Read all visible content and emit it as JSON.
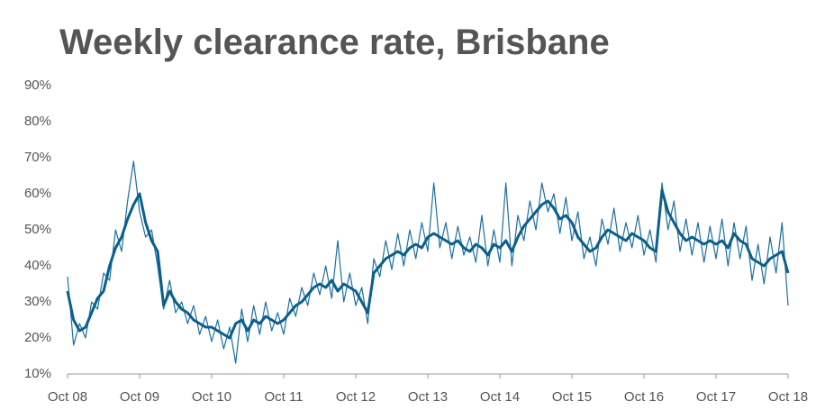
{
  "chart_data": {
    "type": "line",
    "title": "Weekly clearance rate, Brisbane",
    "categories": [
      "Oct 08",
      null,
      null,
      null,
      null,
      null,
      null,
      null,
      null,
      null,
      null,
      null,
      "Oct 09",
      null,
      null,
      null,
      null,
      null,
      null,
      null,
      null,
      null,
      null,
      null,
      "Oct 10",
      null,
      null,
      null,
      null,
      null,
      null,
      null,
      null,
      null,
      null,
      null,
      "Oct 11",
      null,
      null,
      null,
      null,
      null,
      null,
      null,
      null,
      null,
      null,
      null,
      "Oct 12",
      null,
      null,
      null,
      null,
      null,
      null,
      null,
      null,
      null,
      null,
      null,
      "Oct 13",
      null,
      null,
      null,
      null,
      null,
      null,
      null,
      null,
      null,
      null,
      null,
      "Oct 14",
      null,
      null,
      null,
      null,
      null,
      null,
      null,
      null,
      null,
      null,
      null,
      "Oct 15",
      null,
      null,
      null,
      null,
      null,
      null,
      null,
      null,
      null,
      null,
      null,
      "Oct 16",
      null,
      null,
      null,
      null,
      null,
      null,
      null,
      null,
      null,
      null,
      null,
      "Oct 17",
      null,
      null,
      null,
      null,
      null,
      null,
      null,
      null,
      null,
      null,
      null,
      "Oct 18"
    ],
    "series": [
      {
        "color": "#1d6f9e",
        "values": [
          37,
          18,
          24,
          20,
          30,
          28,
          38,
          36,
          50,
          44,
          58,
          69,
          55,
          48,
          50,
          40,
          28,
          36,
          27,
          30,
          24,
          29,
          21,
          26,
          19,
          25,
          17,
          23,
          13,
          28,
          19,
          29,
          21,
          30,
          22,
          27,
          21,
          31,
          26,
          34,
          29,
          38,
          32,
          40,
          31,
          47,
          30,
          38,
          29,
          34,
          24,
          42,
          37,
          47,
          39,
          49,
          40,
          50,
          42,
          52,
          44,
          63,
          45,
          52,
          42,
          51,
          43,
          48,
          41,
          54,
          40,
          50,
          41,
          63,
          40,
          54,
          47,
          58,
          50,
          63,
          55,
          60,
          49,
          59,
          47,
          55,
          42,
          48,
          40,
          53,
          46,
          56,
          44,
          52,
          45,
          54,
          43,
          50,
          41,
          63,
          50,
          58,
          44,
          53,
          43,
          52,
          41,
          51,
          42,
          53,
          40,
          52,
          42,
          51,
          36,
          46,
          35,
          48,
          38,
          52,
          29
        ]
      },
      {
        "color": "#0b5f8c",
        "values": [
          33,
          25,
          22,
          23,
          27,
          31,
          33,
          40,
          45,
          48,
          53,
          57,
          60,
          52,
          47,
          44,
          29,
          33,
          30,
          28,
          27,
          25,
          24,
          23,
          23,
          22,
          21,
          20,
          24,
          25,
          22,
          25,
          24,
          26,
          25,
          24,
          25,
          27,
          29,
          30,
          32,
          34,
          35,
          34,
          36,
          33,
          35,
          34,
          33,
          30,
          27,
          38,
          40,
          42,
          43,
          44,
          43,
          45,
          46,
          45,
          48,
          49,
          48,
          47,
          46,
          47,
          45,
          44,
          46,
          45,
          43,
          46,
          45,
          47,
          44,
          48,
          51,
          53,
          55,
          57,
          58,
          56,
          53,
          54,
          52,
          48,
          46,
          44,
          45,
          48,
          50,
          49,
          48,
          47,
          49,
          48,
          47,
          45,
          44,
          61,
          55,
          52,
          49,
          47,
          48,
          47,
          46,
          47,
          46,
          47,
          45,
          49,
          47,
          46,
          42,
          41,
          40,
          42,
          43,
          44,
          38
        ]
      }
    ],
    "ylim": [
      10,
      90
    ],
    "yticks": [
      {
        "value": 10,
        "label": "10%"
      },
      {
        "value": 20,
        "label": "20%"
      },
      {
        "value": 30,
        "label": "30%"
      },
      {
        "value": 40,
        "label": "40%"
      },
      {
        "value": 50,
        "label": "50%"
      },
      {
        "value": 60,
        "label": "60%"
      },
      {
        "value": 70,
        "label": "70%"
      },
      {
        "value": 80,
        "label": "80%"
      },
      {
        "value": 90,
        "label": "90%"
      }
    ],
    "grid": false
  }
}
